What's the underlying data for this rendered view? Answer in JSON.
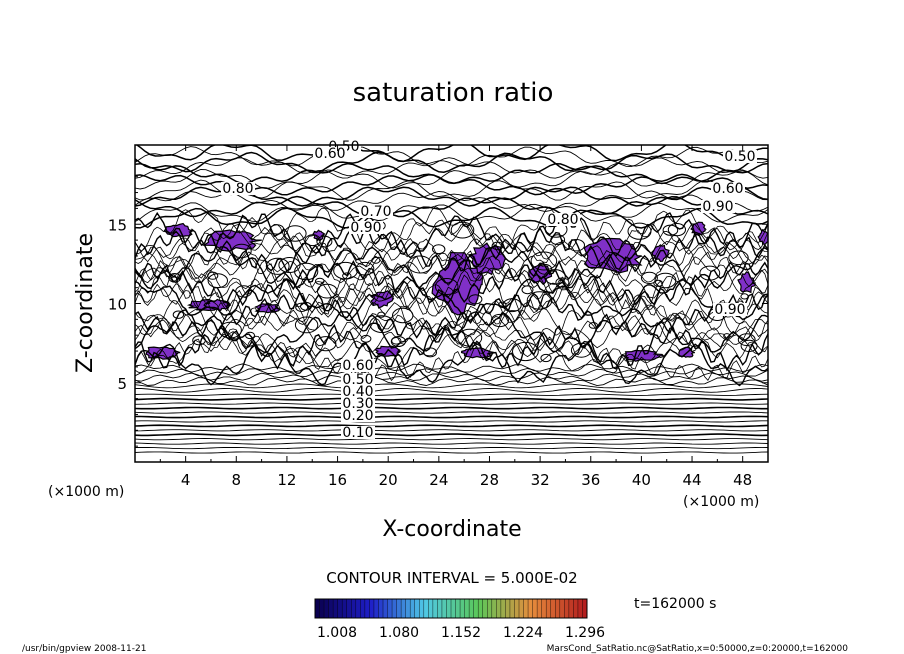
{
  "chart_data": {
    "type": "contour",
    "title": "saturation ratio",
    "xlabel": "X-coordinate",
    "ylabel": "Z-coordinate",
    "x_unit": "(×1000 m)",
    "z_unit": "(×1000 m)",
    "xlim": [
      0,
      50
    ],
    "ylim": [
      0,
      20
    ],
    "x_ticks": [
      4,
      8,
      12,
      16,
      20,
      24,
      28,
      32,
      36,
      40,
      44,
      48
    ],
    "y_ticks": [
      5,
      10,
      15
    ],
    "contour_labels_lower": [
      "0.60",
      "0.50",
      "0.40",
      "0.30",
      "0.20",
      "0.10"
    ],
    "contour_labels_upper": [
      "0.50",
      "0.60",
      "0.80",
      "0.70",
      "0.90",
      "0.80",
      "0.50",
      "0.60",
      "0.90",
      "0.90"
    ],
    "contour_interval_text": "CONTOUR INTERVAL = 5.000E-02",
    "colorbar_ticks": [
      "1.008",
      "1.080",
      "1.152",
      "1.224",
      "1.296"
    ],
    "fill_color": "#8030c8",
    "time_label": "t=162000 s"
  },
  "footer": {
    "left": "/usr/bin/gpview   2008-11-21",
    "right": "MarsCond_SatRatio.nc@SatRatio,x=0:50000,z=0:20000,t=162000"
  }
}
